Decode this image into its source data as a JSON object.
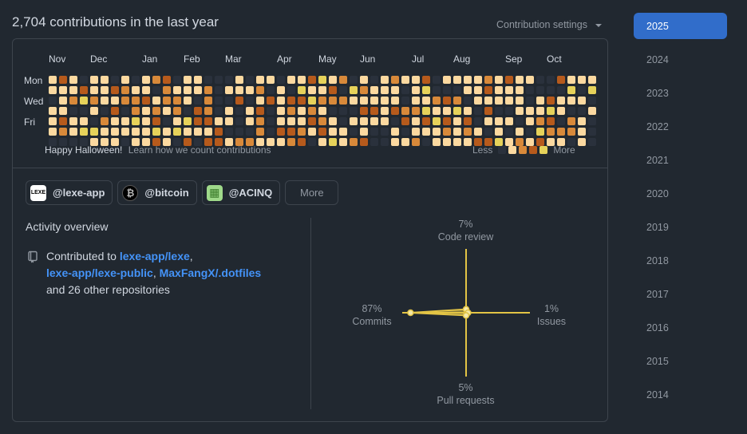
{
  "header": {
    "title": "2,704 contributions in the last year",
    "settings_label": "Contribution settings"
  },
  "calendar": {
    "months": [
      "Nov",
      "Dec",
      "Jan",
      "Feb",
      "Mar",
      "Apr",
      "May",
      "Jun",
      "Jul",
      "Aug",
      "Sep",
      "Oct"
    ],
    "day_labels": [
      "Mon",
      "Wed",
      "Fri"
    ],
    "footer_message": "Happy Halloween!",
    "learn_link": "Learn how we count contributions",
    "legend_less": "Less",
    "legend_more": "More",
    "level_colors": [
      "#2a313c",
      "#fcd9a0",
      "#d8893a",
      "#b65a1c",
      "#e6d25a"
    ]
  },
  "orgs": [
    {
      "label": "@lexe-app",
      "avatar_text": "LEXE",
      "avatar_bg": "#ffffff",
      "avatar_fg": "#000000"
    },
    {
      "label": "@bitcoin",
      "avatar_text": "₿",
      "avatar_bg": "#000000",
      "avatar_fg": "#bbbbbb"
    },
    {
      "label": "@ACINQ",
      "avatar_text": "▦",
      "avatar_bg": "#9fd98a",
      "avatar_fg": "#3a7a2a"
    }
  ],
  "more_label": "More",
  "activity": {
    "title": "Activity overview",
    "contributed_prefix": "Contributed to",
    "repo1": "lexe-app/lexe",
    "repo2": "lexe-app/lexe-public",
    "repo3": "MaxFangX/.dotfiles",
    "suffix": "and 26 other repositories",
    "sep1": ",",
    "sep2": ","
  },
  "radar": {
    "code_review": {
      "pct": "7%",
      "label": "Code review",
      "value": 7
    },
    "issues": {
      "pct": "1%",
      "label": "Issues",
      "value": 1
    },
    "pull_requests": {
      "pct": "5%",
      "label": "Pull requests",
      "value": 5
    },
    "commits": {
      "pct": "87%",
      "label": "Commits",
      "value": 87
    },
    "color": "#e3c445"
  },
  "years": [
    "2025",
    "2024",
    "2023",
    "2022",
    "2021",
    "2020",
    "2019",
    "2018",
    "2017",
    "2016",
    "2015",
    "2014"
  ],
  "selected_year": "2025"
}
